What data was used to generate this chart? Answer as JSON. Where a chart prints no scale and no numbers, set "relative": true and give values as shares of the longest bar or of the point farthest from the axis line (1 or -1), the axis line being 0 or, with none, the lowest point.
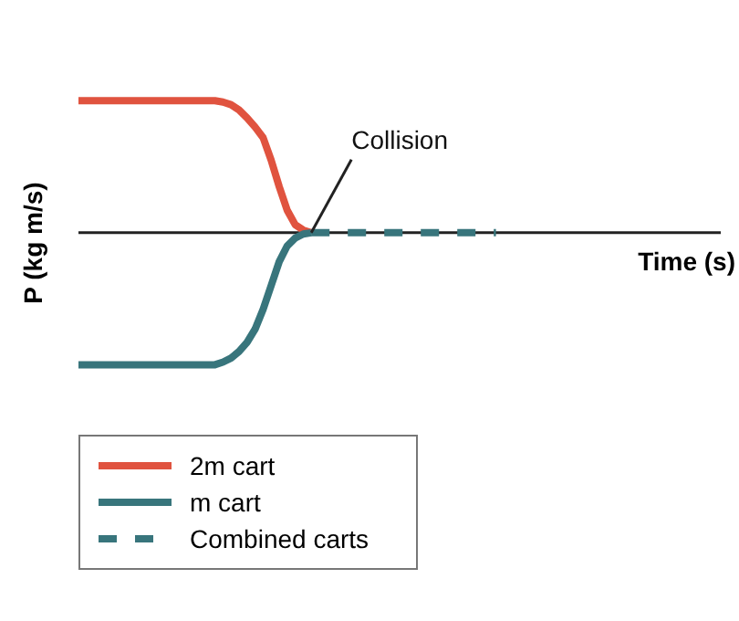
{
  "chart_data": {
    "type": "line",
    "relative": true,
    "xlabel": "Time (s)",
    "ylabel": "P (kg m/s)",
    "tick_labels": false,
    "legend": "bottom left",
    "marker": "none",
    "categories": [
      null,
      null,
      null,
      null,
      null,
      null,
      null,
      null,
      null,
      null,
      null,
      null,
      null,
      null,
      null,
      null,
      null,
      null,
      null,
      null,
      null,
      null,
      null,
      null,
      null,
      null,
      null,
      null,
      null,
      null,
      null,
      null,
      null,
      null,
      null,
      null,
      null,
      null,
      null,
      null,
      null,
      null,
      null,
      null,
      null,
      null,
      null,
      null,
      null,
      null,
      null,
      null,
      null,
      null,
      null,
      null,
      null,
      null,
      null,
      null,
      null,
      null,
      null,
      null,
      null,
      null,
      null,
      null,
      null,
      null,
      null,
      null,
      null,
      null,
      null,
      null,
      null,
      null,
      null,
      null,
      null
    ],
    "series": [
      {
        "name": "2m cart",
        "color": "#e0533f",
        "values": [
          1,
          1,
          1,
          1,
          1,
          1,
          1,
          1,
          1,
          1,
          1,
          1,
          1,
          1,
          1,
          1,
          1,
          1,
          0.99,
          0.97,
          0.93,
          0.87,
          0.8,
          0.72,
          0.55,
          0.35,
          0.17,
          0.06,
          0.02,
          0,
          null,
          null,
          null,
          null,
          null,
          null,
          null,
          null,
          null,
          null,
          null,
          null,
          null,
          null,
          null,
          null,
          null,
          null,
          null,
          null,
          null,
          null,
          null,
          null,
          null,
          null,
          null,
          null,
          null,
          null,
          null,
          null,
          null,
          null,
          null,
          null,
          null,
          null,
          null,
          null,
          null,
          null,
          null,
          null,
          null,
          null,
          null,
          null,
          null,
          null,
          null
        ]
      },
      {
        "name": "m cart",
        "color": "#38757c",
        "values": [
          -1,
          -1,
          -1,
          -1,
          -1,
          -1,
          -1,
          -1,
          -1,
          -1,
          -1,
          -1,
          -1,
          -1,
          -1,
          -1,
          -1,
          -1,
          -0.98,
          -0.95,
          -0.9,
          -0.83,
          -0.73,
          -0.58,
          -0.4,
          -0.22,
          -0.1,
          -0.04,
          -0.01,
          0,
          null,
          null,
          null,
          null,
          null,
          null,
          null,
          null,
          null,
          null,
          null,
          null,
          null,
          null,
          null,
          null,
          null,
          null,
          null,
          null,
          null,
          null,
          null,
          null,
          null,
          null,
          null,
          null,
          null,
          null,
          null,
          null,
          null,
          null,
          null,
          null,
          null,
          null,
          null,
          null,
          null,
          null,
          null,
          null,
          null,
          null,
          null,
          null,
          null,
          null,
          null
        ]
      },
      {
        "name": "Combined carts",
        "color": "#38757c",
        "line_style": "dashed",
        "values": [
          null,
          null,
          null,
          null,
          null,
          null,
          null,
          null,
          null,
          null,
          null,
          null,
          null,
          null,
          null,
          null,
          null,
          null,
          null,
          null,
          null,
          null,
          null,
          null,
          null,
          null,
          null,
          null,
          null,
          0,
          0,
          0,
          0,
          0,
          0,
          0,
          0,
          0,
          0,
          0,
          0,
          0,
          0,
          0,
          0,
          0,
          0,
          0,
          0,
          0,
          0,
          0,
          0,
          null,
          null,
          null,
          null,
          null,
          null,
          null,
          null,
          null,
          null,
          null,
          null,
          null,
          null,
          null,
          null,
          null,
          null,
          null,
          null,
          null,
          null,
          null,
          null,
          null,
          null,
          null,
          null
        ]
      }
    ],
    "annotations": [
      "Collision"
    ]
  }
}
